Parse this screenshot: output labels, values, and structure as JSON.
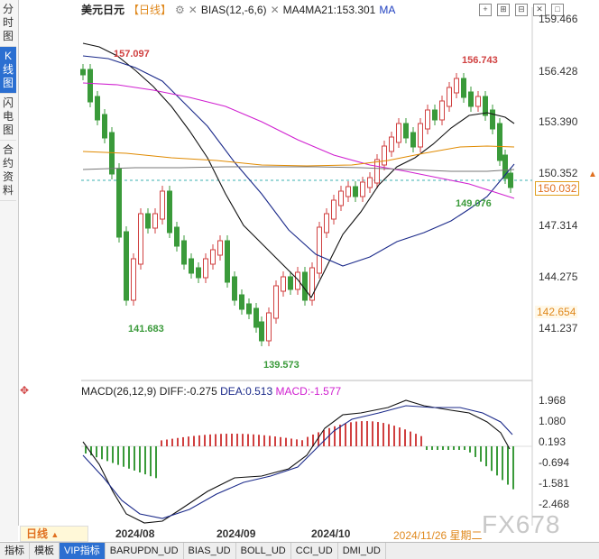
{
  "left_tabs": [
    "分时图",
    "K线图",
    "闪电图",
    "合约资料"
  ],
  "header": {
    "title": "美元日元",
    "period": "【日线】",
    "bias_label": "BIAS(12,-6,6)",
    "ma_label": "MA4MA21:153.301",
    "ma_suffix": "MA"
  },
  "price_axis": [
    "159.466",
    "156.428",
    "153.390",
    "150.352",
    "147.314",
    "144.275",
    "141.237"
  ],
  "price_tags": {
    "current": "150.032",
    "level": "142.654"
  },
  "annotations": {
    "high1": "157.097",
    "high2": "156.743",
    "low1": "141.683",
    "low2": "139.573",
    "low3": "149.076"
  },
  "macd": {
    "label": "MACD(26,12,9)",
    "diff": "DIFF:-0.275",
    "dea": "DEA:0.513",
    "macd": "MACD:-1.577",
    "axis": [
      "1.968",
      "1.080",
      "0.193",
      "-0.694",
      "-1.581",
      "-2.468"
    ]
  },
  "dates": {
    "d1": "2024/08",
    "d2": "2024/09",
    "d3": "2024/10",
    "current": "2024/11/26 星期二"
  },
  "period_selector": "日线",
  "bottom_tabs": [
    "指标",
    "模板",
    "VIP指标",
    "BARUPDN_UD",
    "BIAS_UD",
    "BOLL_UD",
    "CCI_UD",
    "DMI_UD"
  ],
  "watermark": "FX678",
  "colors": {
    "up": "#d04040",
    "down": "#3a9a3a",
    "ma_black": "#111111",
    "ma_blue": "#1b2a8a",
    "ma_magenta": "#d020d0",
    "ma_orange": "#e08a00",
    "ma_gray": "#777777"
  }
}
